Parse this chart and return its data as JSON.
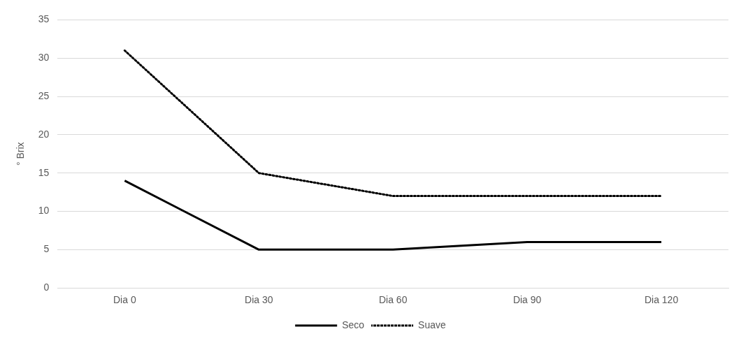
{
  "chart_data": {
    "type": "line",
    "ylabel": "° Brix",
    "categories": [
      "Dia 0",
      "Dia 30",
      "Dia 60",
      "Dia 90",
      "Dia 120"
    ],
    "series": [
      {
        "name": "Seco",
        "color": "#000000",
        "line_style": "solid",
        "values": [
          14,
          5,
          5,
          6,
          6
        ]
      },
      {
        "name": "Suave",
        "color": "#000000",
        "line_style": "dotted",
        "values": [
          31,
          15,
          12,
          12,
          12
        ]
      }
    ],
    "ylim": [
      0,
      35
    ],
    "yticks": [
      0,
      5,
      10,
      15,
      20,
      25,
      30,
      35
    ],
    "grid": "y",
    "legend": "bottom",
    "marker": "none"
  }
}
